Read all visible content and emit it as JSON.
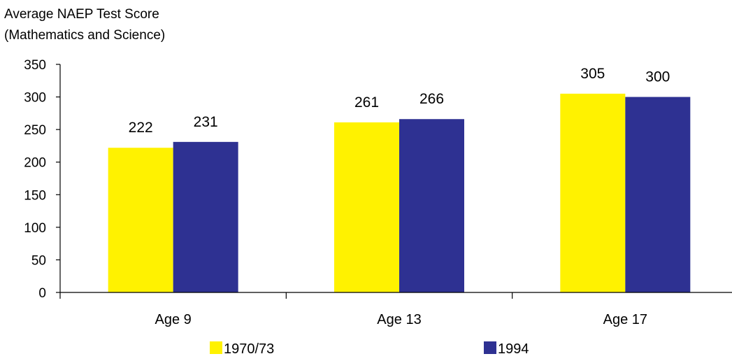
{
  "chart_data": {
    "type": "bar",
    "ylabel_lines": [
      "Average NAEP Test Score",
      "(Mathematics and Science)"
    ],
    "xlabel": "",
    "categories": [
      "Age 9",
      "Age 13",
      "Age 17"
    ],
    "series": [
      {
        "name": "1970/73",
        "color": "#FFF200",
        "values": [
          222,
          261,
          305
        ]
      },
      {
        "name": "1994",
        "color": "#2E3192",
        "values": [
          231,
          266,
          300
        ]
      }
    ],
    "ylim": [
      0,
      350
    ],
    "yticks": [
      "0",
      "50",
      "100",
      "150",
      "200",
      "250",
      "300",
      "350"
    ],
    "data_labels": [
      [
        "222",
        "261",
        "305"
      ],
      [
        "231",
        "266",
        "300"
      ]
    ],
    "grid": false,
    "legend_position": "bottom"
  }
}
